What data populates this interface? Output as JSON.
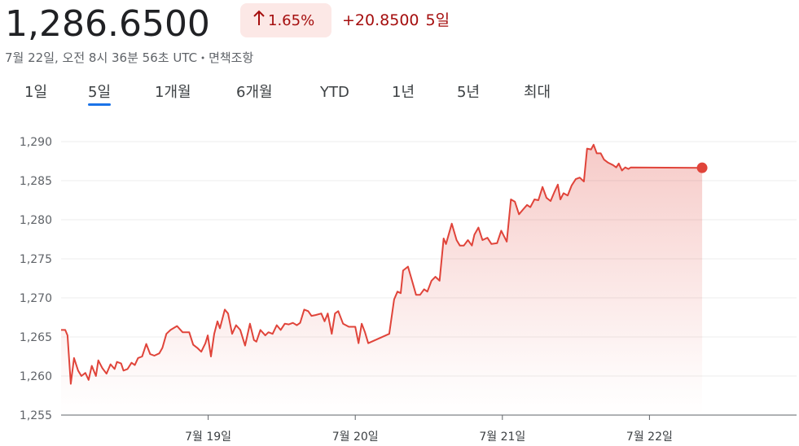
{
  "header": {
    "price": "1,286.6500",
    "change_percent": "1.65%",
    "change": "+20.8500",
    "period": "5일",
    "timestamp": "7월 22일, 오전 8시 36분 56초 UTC",
    "disclaimer": "면책조항"
  },
  "tabs": [
    "1일",
    "5일",
    "1개월",
    "6개월",
    "YTD",
    "1년",
    "5년",
    "최대"
  ],
  "selected_tab": 1,
  "chart_data": {
    "type": "area",
    "color": "#e0443a",
    "grid": true,
    "xlim": [
      18,
      23
    ],
    "xticks": [
      {
        "value": 19,
        "label": "7월 19일"
      },
      {
        "value": 20,
        "label": "7월 20일"
      },
      {
        "value": 21,
        "label": "7월 21일"
      },
      {
        "value": 22,
        "label": "7월 22일"
      }
    ],
    "ylim": [
      1255,
      1292.5
    ],
    "yticks": [
      {
        "value": 1255,
        "label": "1,255"
      },
      {
        "value": 1260,
        "label": "1,260"
      },
      {
        "value": 1265,
        "label": "1,265"
      },
      {
        "value": 1270,
        "label": "1,270"
      },
      {
        "value": 1275,
        "label": "1,275"
      },
      {
        "value": 1280,
        "label": "1,280"
      },
      {
        "value": 1285,
        "label": "1,285"
      },
      {
        "value": 1290,
        "label": "1,290"
      }
    ],
    "x": [
      18.0,
      18.028,
      18.044,
      18.066,
      18.088,
      18.116,
      18.138,
      18.165,
      18.187,
      18.209,
      18.237,
      18.253,
      18.281,
      18.309,
      18.336,
      18.364,
      18.38,
      18.408,
      18.424,
      18.452,
      18.479,
      18.501,
      18.523,
      18.551,
      18.579,
      18.606,
      18.634,
      18.667,
      18.689,
      18.716,
      18.744,
      18.788,
      18.826,
      18.871,
      18.898,
      18.926,
      18.953,
      18.981,
      18.997,
      19.019,
      19.041,
      19.063,
      19.08,
      19.113,
      19.135,
      19.163,
      19.19,
      19.218,
      19.251,
      19.284,
      19.311,
      19.328,
      19.355,
      19.388,
      19.41,
      19.438,
      19.466,
      19.493,
      19.521,
      19.548,
      19.576,
      19.603,
      19.625,
      19.653,
      19.68,
      19.702,
      19.73,
      19.769,
      19.791,
      19.813,
      19.84,
      19.862,
      19.884,
      19.917,
      19.956,
      20.0,
      20.022,
      20.044,
      20.066,
      20.088,
      20.231,
      20.264,
      20.287,
      20.309,
      20.325,
      20.358,
      20.386,
      20.413,
      20.441,
      20.468,
      20.49,
      20.518,
      20.545,
      20.573,
      20.601,
      20.617,
      20.656,
      20.689,
      20.711,
      20.738,
      20.766,
      20.793,
      20.81,
      20.837,
      20.865,
      20.898,
      20.926,
      20.964,
      20.992,
      21.03,
      21.058,
      21.085,
      21.113,
      21.14,
      21.168,
      21.19,
      21.218,
      21.245,
      21.273,
      21.3,
      21.328,
      21.355,
      21.377,
      21.394,
      21.416,
      21.444,
      21.471,
      21.499,
      21.526,
      21.554,
      21.576,
      21.603,
      21.62,
      21.642,
      21.669,
      21.691,
      21.719,
      21.752,
      21.774,
      21.791,
      21.813,
      21.835,
      21.857,
      21.873,
      22.358
    ],
    "values": [
      1265.9,
      1265.9,
      1265.2,
      1259.0,
      1262.3,
      1260.7,
      1260.0,
      1260.4,
      1259.5,
      1261.3,
      1260.0,
      1262.0,
      1261.0,
      1260.3,
      1261.5,
      1260.9,
      1261.8,
      1261.6,
      1260.7,
      1260.9,
      1261.7,
      1261.4,
      1262.3,
      1262.5,
      1264.1,
      1262.8,
      1262.6,
      1262.9,
      1263.6,
      1265.4,
      1265.9,
      1266.4,
      1265.6,
      1265.6,
      1264.0,
      1263.6,
      1263.1,
      1264.2,
      1265.2,
      1262.5,
      1265.4,
      1267.0,
      1266.1,
      1268.5,
      1268.0,
      1265.4,
      1266.5,
      1265.9,
      1263.9,
      1266.7,
      1264.6,
      1264.4,
      1265.9,
      1265.2,
      1265.6,
      1265.4,
      1266.5,
      1265.9,
      1266.7,
      1266.6,
      1266.8,
      1266.5,
      1266.8,
      1268.5,
      1268.3,
      1267.7,
      1267.8,
      1268.0,
      1267.0,
      1268.0,
      1265.4,
      1268.0,
      1268.3,
      1266.7,
      1266.3,
      1266.3,
      1264.2,
      1266.7,
      1265.6,
      1264.2,
      1265.4,
      1269.8,
      1270.8,
      1270.6,
      1273.5,
      1274.0,
      1272.2,
      1270.4,
      1270.4,
      1271.1,
      1270.8,
      1272.2,
      1272.7,
      1272.2,
      1277.6,
      1276.9,
      1279.5,
      1277.4,
      1276.7,
      1276.7,
      1277.4,
      1276.7,
      1278.1,
      1279.0,
      1277.4,
      1277.7,
      1276.9,
      1277.0,
      1278.6,
      1277.2,
      1282.6,
      1282.3,
      1280.7,
      1281.3,
      1281.9,
      1281.6,
      1282.6,
      1282.5,
      1284.2,
      1282.8,
      1282.4,
      1283.6,
      1284.5,
      1282.6,
      1283.4,
      1283.1,
      1284.4,
      1285.2,
      1285.4,
      1284.9,
      1289.1,
      1289.0,
      1289.6,
      1288.5,
      1288.5,
      1287.7,
      1287.3,
      1287.0,
      1286.7,
      1287.2,
      1286.3,
      1286.7,
      1286.5,
      1286.7,
      1286.65
    ]
  }
}
